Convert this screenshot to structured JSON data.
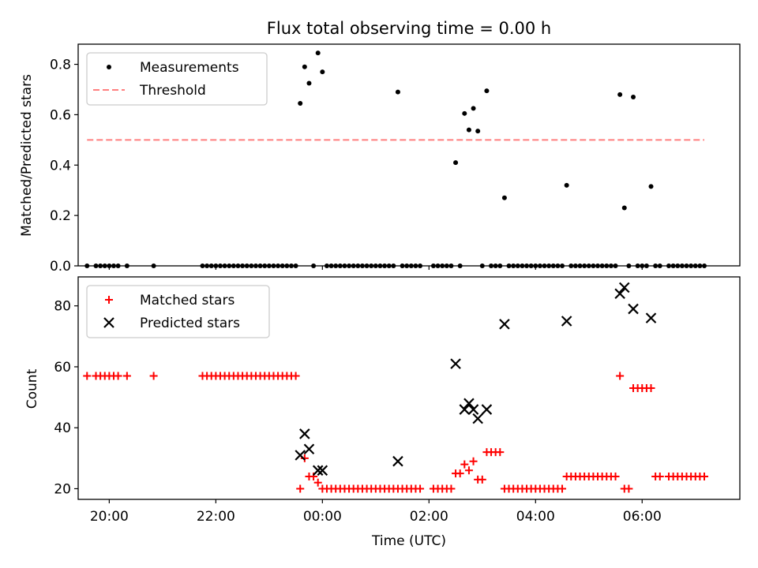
{
  "chart_data": [
    {
      "type": "scatter",
      "title": "Flux total observing time = 0.00 h",
      "xlabel": "",
      "ylabel": "Matched/Predicted stars",
      "ylim": [
        0.0,
        0.88
      ],
      "xlim": [
        "19:25",
        "07:50"
      ],
      "yticks": [
        "0.0",
        "0.2",
        "0.4",
        "0.6",
        "0.8"
      ],
      "legend_position": "top-left",
      "grid": false,
      "series": [
        {
          "name": "Measurements",
          "marker": "dot",
          "color": "#000000",
          "points": [
            [
              "19:35",
              0
            ],
            [
              "19:45",
              0
            ],
            [
              "19:50",
              0
            ],
            [
              "19:55",
              0
            ],
            [
              "20:00",
              0
            ],
            [
              "20:05",
              0
            ],
            [
              "20:10",
              0
            ],
            [
              "20:20",
              0
            ],
            [
              "20:50",
              0
            ],
            [
              "21:45",
              0
            ],
            [
              "21:50",
              0
            ],
            [
              "21:55",
              0
            ],
            [
              "22:00",
              0
            ],
            [
              "22:05",
              0
            ],
            [
              "22:10",
              0
            ],
            [
              "22:15",
              0
            ],
            [
              "22:20",
              0
            ],
            [
              "22:25",
              0
            ],
            [
              "22:30",
              0
            ],
            [
              "22:35",
              0
            ],
            [
              "22:40",
              0
            ],
            [
              "22:45",
              0
            ],
            [
              "22:50",
              0
            ],
            [
              "22:55",
              0
            ],
            [
              "23:00",
              0
            ],
            [
              "23:05",
              0
            ],
            [
              "23:10",
              0
            ],
            [
              "23:15",
              0
            ],
            [
              "23:20",
              0
            ],
            [
              "23:25",
              0
            ],
            [
              "23:30",
              0
            ],
            [
              "23:35",
              0.645
            ],
            [
              "23:40",
              0.79
            ],
            [
              "23:45",
              0.725
            ],
            [
              "23:50",
              0
            ],
            [
              "23:55",
              0.845
            ],
            [
              "00:00",
              0.77
            ],
            [
              "00:05",
              0
            ],
            [
              "00:10",
              0
            ],
            [
              "00:15",
              0
            ],
            [
              "00:20",
              0
            ],
            [
              "00:25",
              0
            ],
            [
              "00:30",
              0
            ],
            [
              "00:35",
              0
            ],
            [
              "00:40",
              0
            ],
            [
              "00:45",
              0
            ],
            [
              "00:50",
              0
            ],
            [
              "00:55",
              0
            ],
            [
              "01:00",
              0
            ],
            [
              "01:05",
              0
            ],
            [
              "01:10",
              0
            ],
            [
              "01:15",
              0
            ],
            [
              "01:20",
              0
            ],
            [
              "01:25",
              0.69
            ],
            [
              "01:30",
              0
            ],
            [
              "01:35",
              0
            ],
            [
              "01:40",
              0
            ],
            [
              "01:45",
              0
            ],
            [
              "01:50",
              0
            ],
            [
              "02:05",
              0
            ],
            [
              "02:10",
              0
            ],
            [
              "02:15",
              0
            ],
            [
              "02:20",
              0
            ],
            [
              "02:25",
              0
            ],
            [
              "02:30",
              0.41
            ],
            [
              "02:35",
              0
            ],
            [
              "02:40",
              0.605
            ],
            [
              "02:45",
              0.54
            ],
            [
              "02:50",
              0.625
            ],
            [
              "02:55",
              0.535
            ],
            [
              "03:00",
              0
            ],
            [
              "03:05",
              0.695
            ],
            [
              "03:10",
              0
            ],
            [
              "03:15",
              0
            ],
            [
              "03:20",
              0
            ],
            [
              "03:25",
              0.27
            ],
            [
              "03:30",
              0
            ],
            [
              "03:35",
              0
            ],
            [
              "03:40",
              0
            ],
            [
              "03:45",
              0
            ],
            [
              "03:50",
              0
            ],
            [
              "03:55",
              0
            ],
            [
              "04:00",
              0
            ],
            [
              "04:05",
              0
            ],
            [
              "04:10",
              0
            ],
            [
              "04:15",
              0
            ],
            [
              "04:20",
              0
            ],
            [
              "04:25",
              0
            ],
            [
              "04:30",
              0
            ],
            [
              "04:35",
              0.32
            ],
            [
              "04:40",
              0
            ],
            [
              "04:45",
              0
            ],
            [
              "04:50",
              0
            ],
            [
              "04:55",
              0
            ],
            [
              "05:00",
              0
            ],
            [
              "05:05",
              0
            ],
            [
              "05:10",
              0
            ],
            [
              "05:15",
              0
            ],
            [
              "05:20",
              0
            ],
            [
              "05:25",
              0
            ],
            [
              "05:30",
              0
            ],
            [
              "05:35",
              0.68
            ],
            [
              "05:40",
              0.23
            ],
            [
              "05:45",
              0
            ],
            [
              "05:50",
              0.67
            ],
            [
              "05:55",
              0
            ],
            [
              "06:00",
              0
            ],
            [
              "06:05",
              0
            ],
            [
              "06:10",
              0.315
            ],
            [
              "06:15",
              0
            ],
            [
              "06:20",
              0
            ],
            [
              "06:30",
              0
            ],
            [
              "06:35",
              0
            ],
            [
              "06:40",
              0
            ],
            [
              "06:45",
              0
            ],
            [
              "06:50",
              0
            ],
            [
              "06:55",
              0
            ],
            [
              "07:00",
              0
            ],
            [
              "07:05",
              0
            ],
            [
              "07:10",
              0
            ]
          ]
        },
        {
          "name": "Threshold",
          "marker": "dashed-line",
          "color": "#ff7f7f",
          "points": [
            [
              "19:35",
              0.5
            ],
            [
              "07:10",
              0.5
            ]
          ]
        }
      ]
    },
    {
      "type": "scatter",
      "title": "",
      "xlabel": "Time (UTC)",
      "ylabel": "Count",
      "ylim": [
        16.5,
        89.5
      ],
      "xlim": [
        "19:25",
        "07:50"
      ],
      "yticks": [
        "20",
        "40",
        "60",
        "80"
      ],
      "xticks": [
        "20:00",
        "22:00",
        "00:00",
        "02:00",
        "04:00",
        "06:00"
      ],
      "legend_position": "top-left",
      "grid": false,
      "series": [
        {
          "name": "Matched stars",
          "marker": "plus",
          "color": "#ff0000",
          "points": [
            [
              "19:35",
              57
            ],
            [
              "19:45",
              57
            ],
            [
              "19:50",
              57
            ],
            [
              "19:55",
              57
            ],
            [
              "20:00",
              57
            ],
            [
              "20:05",
              57
            ],
            [
              "20:10",
              57
            ],
            [
              "20:20",
              57
            ],
            [
              "20:50",
              57
            ],
            [
              "21:45",
              57
            ],
            [
              "21:50",
              57
            ],
            [
              "21:55",
              57
            ],
            [
              "22:00",
              57
            ],
            [
              "22:05",
              57
            ],
            [
              "22:10",
              57
            ],
            [
              "22:15",
              57
            ],
            [
              "22:20",
              57
            ],
            [
              "22:25",
              57
            ],
            [
              "22:30",
              57
            ],
            [
              "22:35",
              57
            ],
            [
              "22:40",
              57
            ],
            [
              "22:45",
              57
            ],
            [
              "22:50",
              57
            ],
            [
              "22:55",
              57
            ],
            [
              "23:00",
              57
            ],
            [
              "23:05",
              57
            ],
            [
              "23:10",
              57
            ],
            [
              "23:15",
              57
            ],
            [
              "23:20",
              57
            ],
            [
              "23:25",
              57
            ],
            [
              "23:30",
              57
            ],
            [
              "23:35",
              20
            ],
            [
              "23:40",
              30
            ],
            [
              "23:45",
              24
            ],
            [
              "23:50",
              24
            ],
            [
              "23:55",
              22
            ],
            [
              "00:00",
              20
            ],
            [
              "00:05",
              20
            ],
            [
              "00:10",
              20
            ],
            [
              "00:15",
              20
            ],
            [
              "00:20",
              20
            ],
            [
              "00:25",
              20
            ],
            [
              "00:30",
              20
            ],
            [
              "00:35",
              20
            ],
            [
              "00:40",
              20
            ],
            [
              "00:45",
              20
            ],
            [
              "00:50",
              20
            ],
            [
              "00:55",
              20
            ],
            [
              "01:00",
              20
            ],
            [
              "01:05",
              20
            ],
            [
              "01:10",
              20
            ],
            [
              "01:15",
              20
            ],
            [
              "01:20",
              20
            ],
            [
              "01:25",
              20
            ],
            [
              "01:30",
              20
            ],
            [
              "01:35",
              20
            ],
            [
              "01:40",
              20
            ],
            [
              "01:45",
              20
            ],
            [
              "01:50",
              20
            ],
            [
              "02:05",
              20
            ],
            [
              "02:10",
              20
            ],
            [
              "02:15",
              20
            ],
            [
              "02:20",
              20
            ],
            [
              "02:25",
              20
            ],
            [
              "02:30",
              25
            ],
            [
              "02:35",
              25
            ],
            [
              "02:40",
              28
            ],
            [
              "02:45",
              26
            ],
            [
              "02:50",
              29
            ],
            [
              "02:55",
              23
            ],
            [
              "03:00",
              23
            ],
            [
              "03:05",
              32
            ],
            [
              "03:10",
              32
            ],
            [
              "03:15",
              32
            ],
            [
              "03:20",
              32
            ],
            [
              "03:25",
              20
            ],
            [
              "03:30",
              20
            ],
            [
              "03:35",
              20
            ],
            [
              "03:40",
              20
            ],
            [
              "03:45",
              20
            ],
            [
              "03:50",
              20
            ],
            [
              "03:55",
              20
            ],
            [
              "04:00",
              20
            ],
            [
              "04:05",
              20
            ],
            [
              "04:10",
              20
            ],
            [
              "04:15",
              20
            ],
            [
              "04:20",
              20
            ],
            [
              "04:25",
              20
            ],
            [
              "04:30",
              20
            ],
            [
              "04:35",
              24
            ],
            [
              "04:40",
              24
            ],
            [
              "04:45",
              24
            ],
            [
              "04:50",
              24
            ],
            [
              "04:55",
              24
            ],
            [
              "05:00",
              24
            ],
            [
              "05:05",
              24
            ],
            [
              "05:10",
              24
            ],
            [
              "05:15",
              24
            ],
            [
              "05:20",
              24
            ],
            [
              "05:25",
              24
            ],
            [
              "05:30",
              24
            ],
            [
              "05:35",
              57
            ],
            [
              "05:40",
              20
            ],
            [
              "05:45",
              20
            ],
            [
              "05:50",
              53
            ],
            [
              "05:55",
              53
            ],
            [
              "06:00",
              53
            ],
            [
              "06:05",
              53
            ],
            [
              "06:10",
              53
            ],
            [
              "06:15",
              24
            ],
            [
              "06:20",
              24
            ],
            [
              "06:30",
              24
            ],
            [
              "06:35",
              24
            ],
            [
              "06:40",
              24
            ],
            [
              "06:45",
              24
            ],
            [
              "06:50",
              24
            ],
            [
              "06:55",
              24
            ],
            [
              "07:00",
              24
            ],
            [
              "07:05",
              24
            ],
            [
              "07:10",
              24
            ]
          ]
        },
        {
          "name": "Predicted stars",
          "marker": "x",
          "color": "#000000",
          "points": [
            [
              "23:35",
              31
            ],
            [
              "23:40",
              38
            ],
            [
              "23:45",
              33
            ],
            [
              "23:55",
              26
            ],
            [
              "00:00",
              26
            ],
            [
              "01:25",
              29
            ],
            [
              "02:30",
              61
            ],
            [
              "02:40",
              46
            ],
            [
              "02:45",
              48
            ],
            [
              "02:50",
              46
            ],
            [
              "02:55",
              43
            ],
            [
              "03:05",
              46
            ],
            [
              "03:25",
              74
            ],
            [
              "04:35",
              75
            ],
            [
              "05:35",
              84
            ],
            [
              "05:40",
              86
            ],
            [
              "05:50",
              79
            ],
            [
              "06:10",
              76
            ]
          ]
        }
      ]
    }
  ]
}
